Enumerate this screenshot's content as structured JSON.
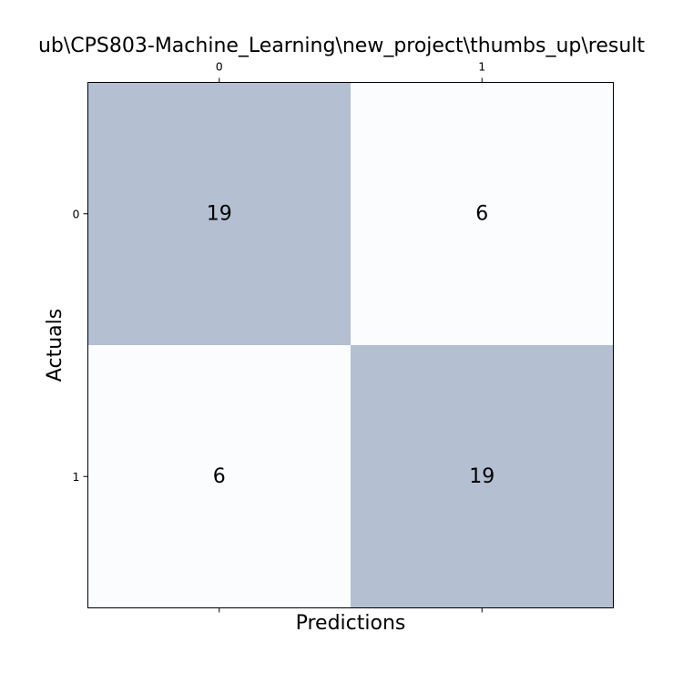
{
  "chart_data": {
    "type": "heatmap",
    "title": "ub\\CPS803-Machine_Learning\\new_project\\thumbs_up\\result",
    "xlabel": "Predictions",
    "ylabel": "Actuals",
    "x_categories": [
      "0",
      "1"
    ],
    "y_categories": [
      "0",
      "1"
    ],
    "values": [
      [
        19,
        6
      ],
      [
        6,
        19
      ]
    ],
    "x_ticks_position": "top",
    "grid": false,
    "colors": {
      "high": "#b4bfd2",
      "low": "#fbfcfe",
      "frame": "#000000"
    }
  }
}
